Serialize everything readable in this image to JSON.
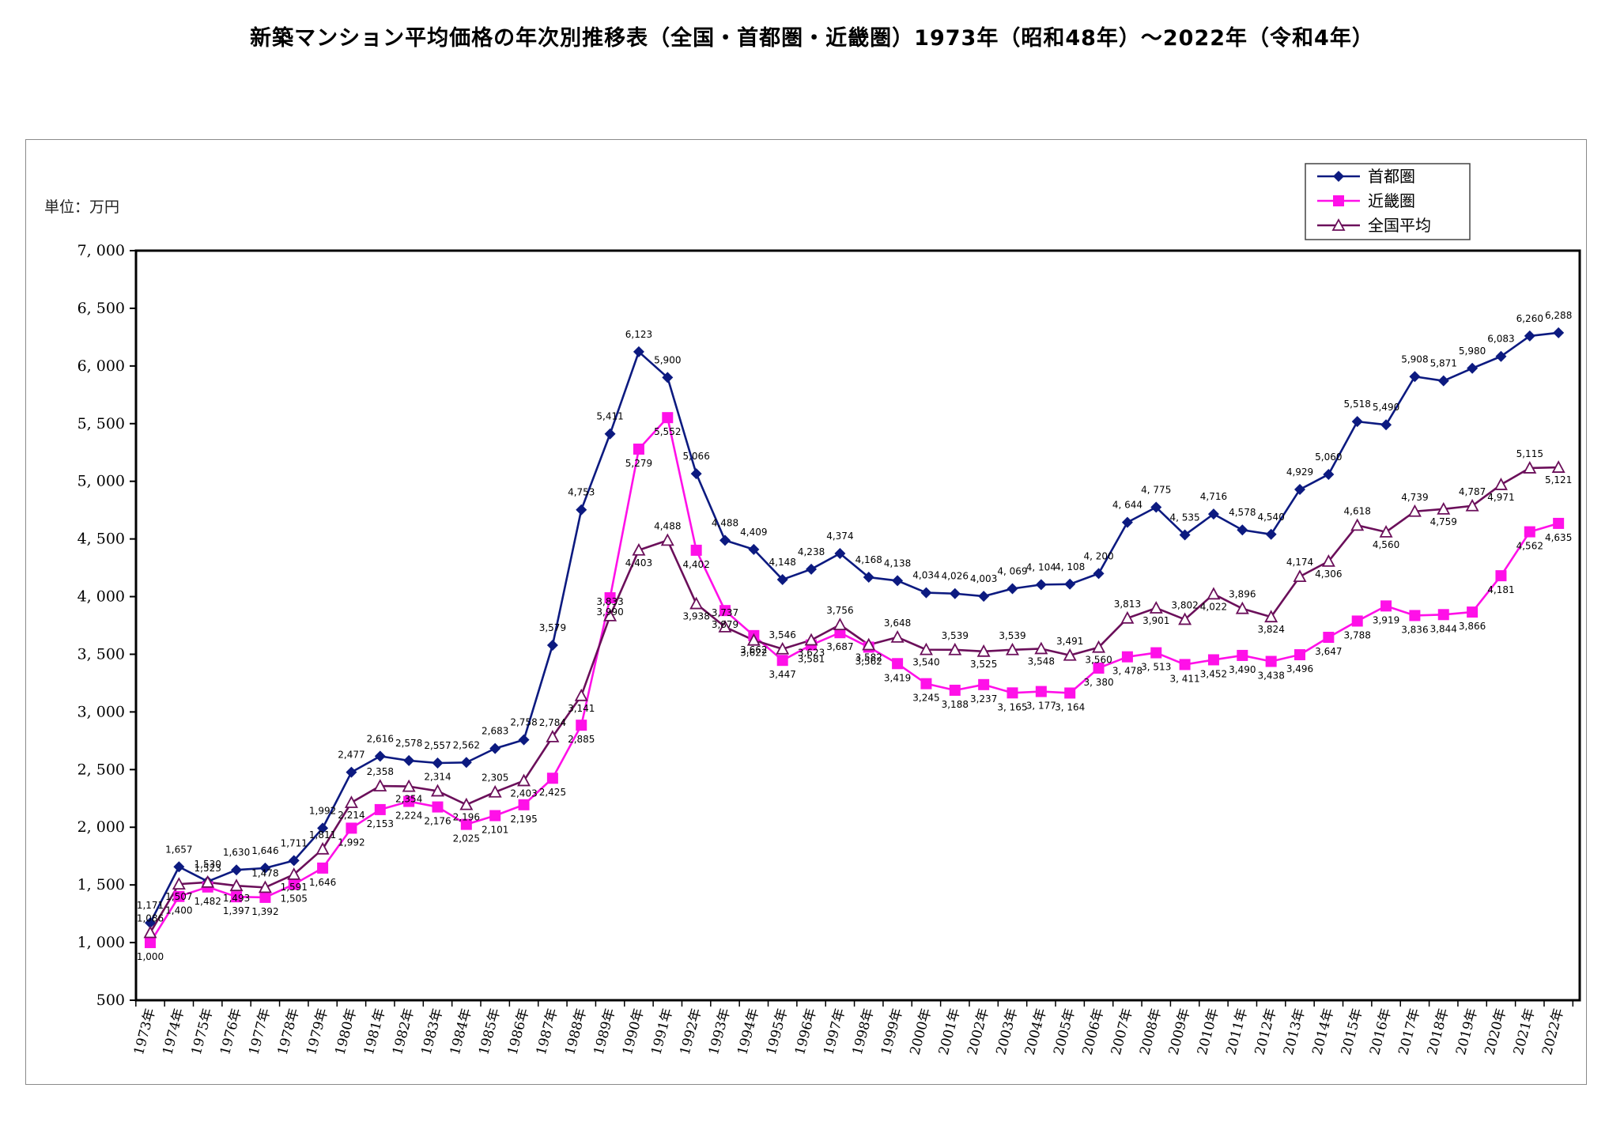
{
  "title": "新築マンション平均価格の年次別推移表（全国・首都圏・近畿圏）1973年（昭和48年）～2022年（令和4年）",
  "unit_label": "単位：万円",
  "colors": {
    "shutoken": "#0c1a80",
    "kinki": "#ff10e8",
    "zenkoku": "#6b0f5a"
  },
  "chart_data": {
    "type": "line",
    "title": "新築マンション平均価格の年次別推移表（全国・首都圏・近畿圏）1973年（昭和48年）～2022年（令和4年）",
    "ylabel": "単位：万円",
    "ylim": [
      500,
      7000
    ],
    "yticks": [
      "500",
      "1, 000",
      "1, 500",
      "2, 000",
      "2, 500",
      "3, 000",
      "3, 500",
      "4, 000",
      "4, 500",
      "5, 000",
      "5, 500",
      "6, 000",
      "6, 500",
      "7, 000"
    ],
    "grid": false,
    "legend": "top-right",
    "categories": [
      "1973年",
      "1974年",
      "1975年",
      "1976年",
      "1977年",
      "1978年",
      "1979年",
      "1980年",
      "1981年",
      "1982年",
      "1983年",
      "1984年",
      "1985年",
      "1986年",
      "1987年",
      "1988年",
      "1989年",
      "1990年",
      "1991年",
      "1992年",
      "1993年",
      "1994年",
      "1995年",
      "1996年",
      "1997年",
      "1998年",
      "1999年",
      "2000年",
      "2001年",
      "2002年",
      "2003年",
      "2004年",
      "2005年",
      "2006年",
      "2007年",
      "2008年",
      "2009年",
      "2010年",
      "2011年",
      "2012年",
      "2013年",
      "2014年",
      "2015年",
      "2016年",
      "2017年",
      "2018年",
      "2019年",
      "2020年",
      "2021年",
      "2022年"
    ],
    "series": [
      {
        "name": "首都圏",
        "marker": "diamond",
        "values": [
          1171,
          1657,
          1530,
          1630,
          1646,
          1711,
          1992,
          2477,
          2616,
          2578,
          2557,
          2562,
          2683,
          2758,
          3579,
          4753,
          5411,
          6123,
          5900,
          5066,
          4488,
          4409,
          4148,
          4238,
          4374,
          4168,
          4138,
          4034,
          4026,
          4003,
          4069,
          4104,
          4108,
          4200,
          4644,
          4775,
          4535,
          4716,
          4578,
          4540,
          4929,
          5060,
          5518,
          5490,
          5908,
          5871,
          5980,
          6083,
          6260,
          6288
        ],
        "labels": [
          "1,171",
          "1,657",
          "1,530",
          "1,630",
          "1,646",
          "1,711",
          "1,992",
          "2,477",
          "2,616",
          "2,578",
          "2,557",
          "2,562",
          "2,683",
          "2,758",
          "3,579",
          "4,753",
          "5,411",
          "6,123",
          "5,900",
          "5,066",
          "4,488",
          "4,409",
          "4,148",
          "4,238",
          "4,374",
          "4,168",
          "4,138",
          "4,034",
          "4,026",
          "4,003",
          "4, 069",
          "4, 104",
          "4, 108",
          "4, 200",
          "4, 644",
          "4, 775",
          "4, 535",
          "4,716",
          "4,578",
          "4,540",
          "4,929",
          "5,060",
          "5,518",
          "5,490",
          "5,908",
          "5,871",
          "5,980",
          "6,083",
          "6,260",
          "6,288"
        ]
      },
      {
        "name": "近畿圏",
        "marker": "square",
        "values": [
          1000,
          1400,
          1482,
          1397,
          1392,
          1505,
          1646,
          1992,
          2153,
          2224,
          2176,
          2025,
          2101,
          2195,
          2425,
          2885,
          3990,
          5279,
          5552,
          4402,
          3879,
          3662,
          3447,
          3581,
          3687,
          3562,
          3419,
          3245,
          3188,
          3237,
          3165,
          3177,
          3164,
          3380,
          3478,
          3513,
          3411,
          3452,
          3490,
          3438,
          3496,
          3647,
          3788,
          3919,
          3836,
          3844,
          3866,
          4181,
          4562,
          4635
        ],
        "labels": [
          "1,000",
          "1,400",
          "1,482",
          "1,397",
          "1,392",
          "1,505",
          "1,646",
          "1,992",
          "2,153",
          "2,224",
          "2,176",
          "2,025",
          "2,101",
          "2,195",
          "2,425",
          "2,885",
          "3,990",
          "5,279",
          "5,552",
          "4,402",
          "3,879",
          "3,662",
          "3,447",
          "3,581",
          "3,687",
          "3,562",
          "3,419",
          "3,245",
          "3,188",
          "3,237",
          "3, 165",
          "3, 177",
          "3, 164",
          "3, 380",
          "3, 478",
          "3, 513",
          "3, 411",
          "3,452",
          "3,490",
          "3,438",
          "3,496",
          "3,647",
          "3,788",
          "3,919",
          "3,836",
          "3,844",
          "3,866",
          "4,181",
          "4,562",
          "4,635"
        ]
      },
      {
        "name": "全国平均",
        "marker": "triangle",
        "values": [
          1086,
          1507,
          1523,
          1493,
          1478,
          1591,
          1811,
          2214,
          2358,
          2354,
          2314,
          2196,
          2305,
          2403,
          2784,
          3141,
          3833,
          4403,
          4488,
          3938,
          3737,
          3622,
          3546,
          3623,
          3756,
          3582,
          3648,
          3540,
          3539,
          3525,
          3539,
          3548,
          3491,
          3560,
          3813,
          3901,
          3802,
          4022,
          3896,
          3824,
          4174,
          4306,
          4618,
          4560,
          4739,
          4759,
          4787,
          4971,
          5115,
          5121
        ],
        "labels": [
          "1,086",
          "1,507",
          "1,523",
          "1,493",
          "1,478",
          "1,591",
          "1,811",
          "2,214",
          "2,358",
          "2,354",
          "2,314",
          "2,196",
          "2,305",
          "2,403",
          "2,784",
          "3,141",
          "3,833",
          "4,403",
          "4,488",
          "3,938",
          "3,737",
          "3,622",
          "3,546",
          "3,623",
          "3,756",
          "3,582",
          "3,648",
          "3,540",
          "3,539",
          "3,525",
          "3,539",
          "3,548",
          "3,491",
          "3,560",
          "3,813",
          "3,901",
          "3,802",
          "4,022",
          "3,896",
          "3,824",
          "4,174",
          "4,306",
          "4,618",
          "4,560",
          "4,739",
          "4,759",
          "4,787",
          "4,971",
          "5,115",
          "5,121"
        ]
      }
    ]
  }
}
